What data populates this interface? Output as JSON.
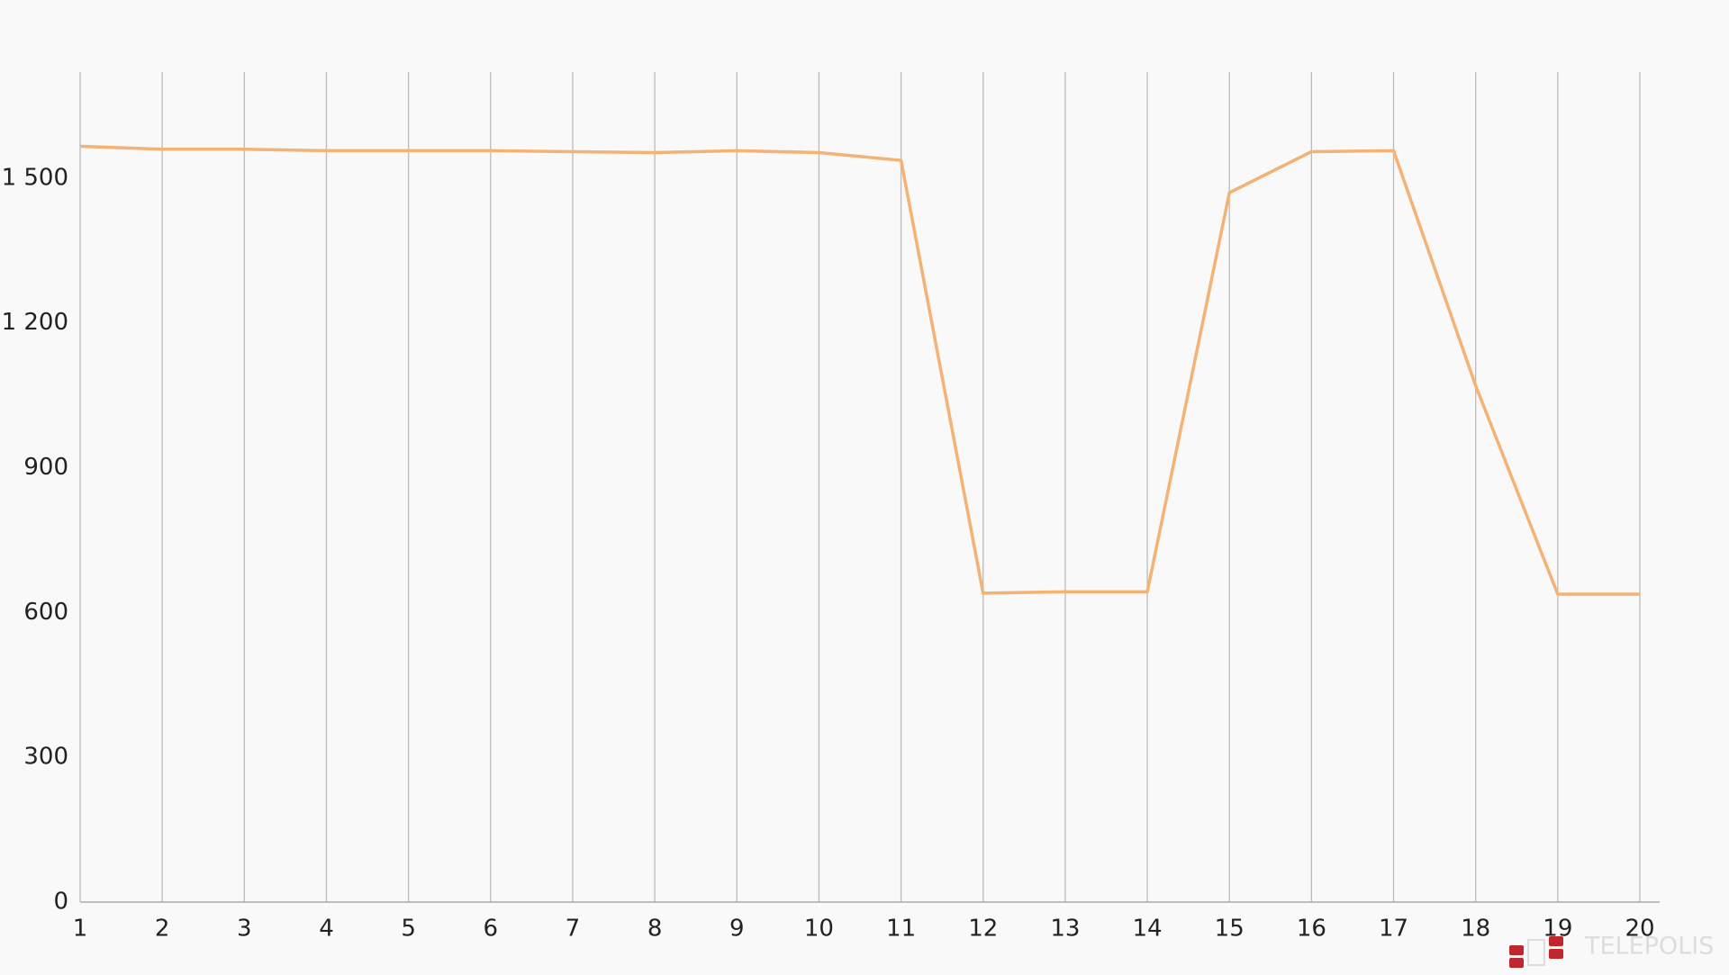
{
  "chart_data": {
    "type": "line",
    "x": [
      1,
      2,
      3,
      4,
      5,
      6,
      7,
      8,
      9,
      10,
      11,
      12,
      13,
      14,
      15,
      16,
      17,
      18,
      19,
      20
    ],
    "series": [
      {
        "color": "#f4b274",
        "values": [
          1566,
          1560,
          1560,
          1557,
          1557,
          1557,
          1555,
          1553,
          1557,
          1553,
          1537,
          640,
          643,
          643,
          1470,
          1555,
          1557,
          1070,
          638,
          638
        ]
      }
    ],
    "xlim": [
      1,
      20
    ],
    "xticks": [
      1,
      2,
      3,
      4,
      5,
      6,
      7,
      8,
      9,
      10,
      11,
      12,
      13,
      14,
      15,
      16,
      17,
      18,
      19,
      20
    ],
    "ylim": [
      0,
      1720
    ],
    "yticks": [
      0,
      300,
      600,
      900,
      {
        "value": 1200,
        "label": "1 200"
      },
      {
        "value": 1500,
        "label": "1 500"
      }
    ],
    "grid": true,
    "watermark": "TELEPOLIS"
  }
}
